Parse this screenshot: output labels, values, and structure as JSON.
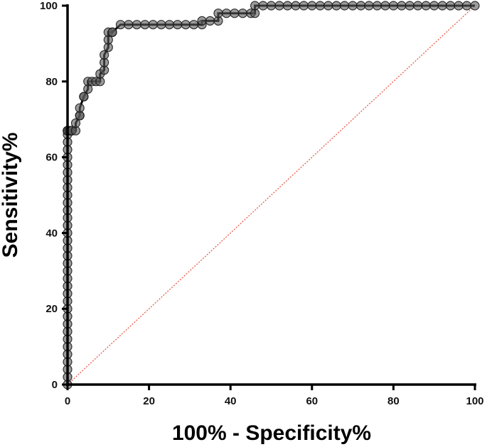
{
  "chart_data": {
    "type": "line",
    "title": "",
    "xlabel": "100% - Specificity%",
    "ylabel": "Sensitivity%",
    "xlim": [
      0,
      100
    ],
    "ylim": [
      0,
      100
    ],
    "x_ticks": [
      0,
      20,
      40,
      60,
      80,
      100
    ],
    "y_ticks": [
      0,
      20,
      40,
      60,
      80,
      100
    ],
    "grid": false,
    "legend": "none",
    "series": [
      {
        "role": "roc-curve",
        "color": "#2b2b2b",
        "marker": "circle",
        "x": [
          0,
          0,
          0,
          0,
          0,
          0,
          0,
          0,
          0,
          0,
          0,
          0,
          0,
          0,
          0,
          0,
          0,
          0,
          0,
          0,
          0,
          0,
          0,
          0,
          0,
          0,
          0,
          0,
          0,
          0,
          0,
          0,
          0,
          0,
          0,
          0,
          0,
          0,
          0,
          0,
          0,
          0,
          0,
          0.5,
          1,
          1,
          1,
          1,
          2,
          2,
          3,
          3,
          3,
          4,
          4,
          5,
          5,
          6,
          7,
          8,
          8,
          9,
          9,
          9,
          10,
          10,
          10,
          11,
          11,
          13,
          15,
          17,
          19,
          21,
          23,
          25,
          27,
          29,
          31,
          33,
          33,
          35,
          37,
          37,
          39,
          41,
          43,
          45,
          46,
          46,
          48,
          50,
          52,
          54,
          56,
          58,
          60,
          62,
          64,
          66,
          68,
          70,
          72,
          74,
          76,
          78,
          80,
          82,
          84,
          86,
          88,
          90,
          92,
          94,
          96,
          98,
          100
        ],
        "y": [
          0,
          2,
          4,
          6,
          8,
          10,
          12,
          14,
          16,
          18,
          20,
          22,
          24,
          26,
          28,
          30,
          32,
          34,
          36,
          38,
          40,
          42,
          44,
          46,
          48,
          50,
          52,
          54,
          56,
          58,
          60,
          62,
          64,
          66,
          67,
          67,
          67,
          67,
          67,
          67,
          67,
          67,
          67,
          67,
          67,
          67,
          67,
          67,
          67,
          69,
          71,
          71,
          73,
          76,
          76,
          78,
          80,
          80,
          80,
          80,
          82,
          83,
          85,
          87,
          89,
          91,
          93,
          93,
          93,
          95,
          95,
          95,
          95,
          95,
          95,
          95,
          95,
          95,
          95,
          95,
          96,
          96,
          96,
          98,
          98,
          98,
          98,
          98,
          98,
          100,
          100,
          100,
          100,
          100,
          100,
          100,
          100,
          100,
          100,
          100,
          100,
          100,
          100,
          100,
          100,
          100,
          100,
          100,
          100,
          100,
          100,
          100,
          100,
          100,
          100,
          100,
          100
        ]
      },
      {
        "role": "reference-line",
        "color": "#e8503a",
        "style": "dotted",
        "x": [
          0,
          100
        ],
        "y": [
          0,
          100
        ]
      }
    ]
  }
}
